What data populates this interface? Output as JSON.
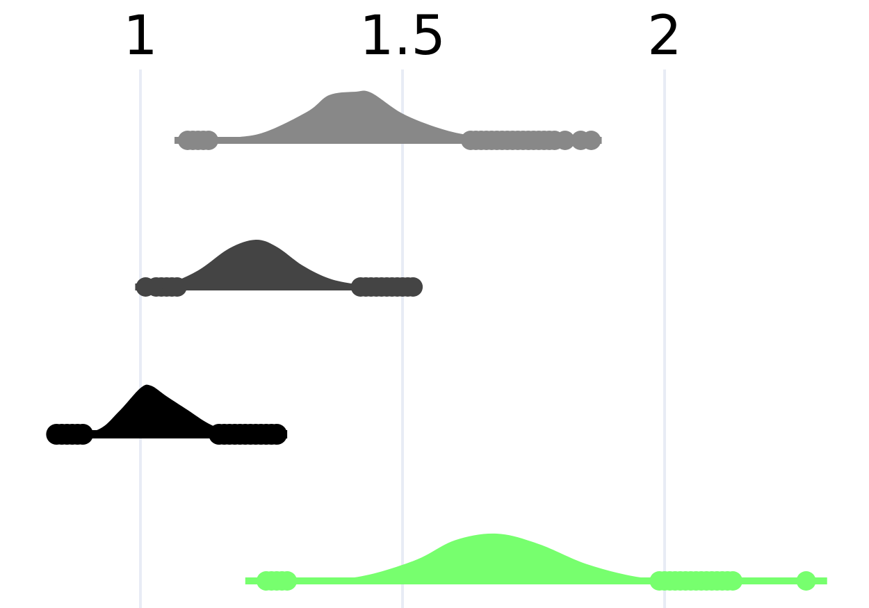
{
  "chart_data": {
    "type": "violin",
    "title": "",
    "xlabel": "",
    "ylabel": "",
    "orientation": "horizontal",
    "side": "positive",
    "xlim": [
      0.83,
      2.31
    ],
    "x_ticks": [
      {
        "value": 1,
        "label": "1"
      },
      {
        "value": 1.5,
        "label": "1.5"
      },
      {
        "value": 2,
        "label": "2"
      }
    ],
    "grid": true,
    "legend": "none",
    "series": [
      {
        "color": "#888888",
        "line_range": [
          1.065,
          1.88
        ],
        "density": [
          [
            1.09,
            0
          ],
          [
            1.18,
            0.06
          ],
          [
            1.24,
            0.18
          ],
          [
            1.32,
            0.6
          ],
          [
            1.36,
            0.93
          ],
          [
            1.41,
            1.0
          ],
          [
            1.44,
            0.98
          ],
          [
            1.5,
            0.55
          ],
          [
            1.57,
            0.25
          ],
          [
            1.63,
            0.1
          ],
          [
            1.7,
            0.03
          ],
          [
            1.76,
            0
          ]
        ],
        "points": [
          1.09,
          1.1,
          1.11,
          1.12,
          1.13,
          1.63,
          1.64,
          1.65,
          1.66,
          1.67,
          1.68,
          1.69,
          1.7,
          1.71,
          1.72,
          1.73,
          1.74,
          1.75,
          1.76,
          1.77,
          1.78,
          1.79,
          1.81,
          1.84,
          1.86
        ]
      },
      {
        "color": "#444444",
        "line_range": [
          0.99,
          1.53
        ],
        "density": [
          [
            1.0,
            0
          ],
          [
            1.05,
            0.06
          ],
          [
            1.11,
            0.35
          ],
          [
            1.17,
            0.82
          ],
          [
            1.22,
            1.0
          ],
          [
            1.26,
            0.85
          ],
          [
            1.31,
            0.45
          ],
          [
            1.36,
            0.18
          ],
          [
            1.41,
            0.06
          ],
          [
            1.46,
            0
          ]
        ],
        "points": [
          1.01,
          1.03,
          1.04,
          1.05,
          1.06,
          1.07,
          1.42,
          1.43,
          1.44,
          1.45,
          1.46,
          1.47,
          1.48,
          1.49,
          1.5,
          1.51,
          1.52
        ]
      },
      {
        "color": "#000000",
        "line_range": [
          0.83,
          1.28
        ],
        "density": [
          [
            0.86,
            0
          ],
          [
            0.92,
            0.1
          ],
          [
            0.96,
            0.48
          ],
          [
            1.0,
            0.95
          ],
          [
            1.02,
            1.0
          ],
          [
            1.05,
            0.78
          ],
          [
            1.09,
            0.5
          ],
          [
            1.13,
            0.22
          ],
          [
            1.17,
            0.05
          ],
          [
            1.21,
            0
          ]
        ],
        "points": [
          0.84,
          0.85,
          0.86,
          0.87,
          0.88,
          0.89,
          1.15,
          1.16,
          1.17,
          1.18,
          1.19,
          1.2,
          1.21,
          1.22,
          1.23,
          1.24,
          1.25,
          1.26
        ]
      },
      {
        "color": "#77ff6e",
        "line_range": [
          1.2,
          2.31
        ],
        "density": [
          [
            1.24,
            0
          ],
          [
            1.4,
            0.06
          ],
          [
            1.52,
            0.42
          ],
          [
            1.6,
            0.86
          ],
          [
            1.68,
            1.0
          ],
          [
            1.76,
            0.78
          ],
          [
            1.85,
            0.36
          ],
          [
            1.94,
            0.1
          ],
          [
            2.02,
            0
          ]
        ],
        "points": [
          1.24,
          1.25,
          1.26,
          1.27,
          1.28,
          1.99,
          2.0,
          2.01,
          2.02,
          2.03,
          2.04,
          2.05,
          2.06,
          2.07,
          2.08,
          2.09,
          2.1,
          2.11,
          2.12,
          2.13,
          2.27
        ]
      }
    ]
  }
}
